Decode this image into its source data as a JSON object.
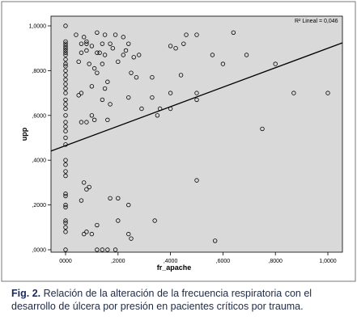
{
  "caption": {
    "label": "Fig. 2.",
    "text": "Relación de la alteración de la frecuencia respiratoria con el desarrollo de úlcera por presión en pacientes críticos por trauma."
  },
  "chart_data": {
    "type": "scatter",
    "title": "",
    "xlabel": "fr_apache",
    "ylabel": "upp",
    "xlim": [
      0,
      1
    ],
    "ylim": [
      0,
      1
    ],
    "x_ticks": [
      "0000",
      ",2000",
      ",4000",
      ",6000",
      ",8000",
      "1,0000"
    ],
    "y_ticks": [
      ",0000",
      ",2000",
      ",4000",
      ",6000",
      ",8000",
      "1,0000"
    ],
    "grid": false,
    "background_color": "#d9d9d9",
    "point_color": "#000000",
    "line_color": "#000000",
    "fit_line": {
      "label": "R² Lineal = 0,046",
      "intercept": 0.465,
      "slope": 0.435
    },
    "points": [
      [
        0,
        1.0
      ],
      [
        0,
        0.93
      ],
      [
        0,
        0.92
      ],
      [
        0,
        0.91
      ],
      [
        0,
        0.9
      ],
      [
        0,
        0.89
      ],
      [
        0,
        0.88
      ],
      [
        0,
        0.87
      ],
      [
        0,
        0.85
      ],
      [
        0,
        0.83
      ],
      [
        0,
        0.82
      ],
      [
        0,
        0.8
      ],
      [
        0,
        0.78
      ],
      [
        0,
        0.76
      ],
      [
        0,
        0.74
      ],
      [
        0,
        0.72
      ],
      [
        0,
        0.7
      ],
      [
        0,
        0.67
      ],
      [
        0,
        0.65
      ],
      [
        0,
        0.63
      ],
      [
        0,
        0.6
      ],
      [
        0,
        0.57
      ],
      [
        0,
        0.55
      ],
      [
        0,
        0.53
      ],
      [
        0,
        0.5
      ],
      [
        0,
        0.47
      ],
      [
        0,
        0.4
      ],
      [
        0,
        0.38
      ],
      [
        0,
        0.35
      ],
      [
        0,
        0.33
      ],
      [
        0,
        0.25
      ],
      [
        0,
        0.24
      ],
      [
        0,
        0.2
      ],
      [
        0,
        0.19
      ],
      [
        0,
        0.13
      ],
      [
        0,
        0.12
      ],
      [
        0,
        0.1
      ],
      [
        0,
        0.08
      ],
      [
        0,
        0.0
      ],
      [
        0.04,
        0.96
      ],
      [
        0.06,
        0.92
      ],
      [
        0.07,
        0.95
      ],
      [
        0.06,
        0.88
      ],
      [
        0.08,
        0.93
      ],
      [
        0.08,
        0.92
      ],
      [
        0.1,
        0.91
      ],
      [
        0.08,
        0.89
      ],
      [
        0.12,
        0.88
      ],
      [
        0.13,
        0.88
      ],
      [
        0.14,
        0.92
      ],
      [
        0.12,
        0.97
      ],
      [
        0.15,
        0.96
      ],
      [
        0.15,
        0.87
      ],
      [
        0.14,
        0.83
      ],
      [
        0.17,
        0.92
      ],
      [
        0.18,
        0.9
      ],
      [
        0.2,
        0.84
      ],
      [
        0.19,
        0.96
      ],
      [
        0.22,
        0.95
      ],
      [
        0.23,
        0.89
      ],
      [
        0.24,
        0.92
      ],
      [
        0.22,
        0.87
      ],
      [
        0.25,
        0.79
      ],
      [
        0.26,
        0.86
      ],
      [
        0.28,
        0.87
      ],
      [
        0.27,
        0.77
      ],
      [
        0.24,
        0.68
      ],
      [
        0.09,
        0.83
      ],
      [
        0.05,
        0.84
      ],
      [
        0.11,
        0.81
      ],
      [
        0.12,
        0.79
      ],
      [
        0.15,
        0.72
      ],
      [
        0.16,
        0.75
      ],
      [
        0.16,
        0.58
      ],
      [
        0.11,
        0.58
      ],
      [
        0.14,
        0.67
      ],
      [
        0.17,
        0.65
      ],
      [
        0.06,
        0.7
      ],
      [
        0.05,
        0.69
      ],
      [
        0.06,
        0.57
      ],
      [
        0.08,
        0.57
      ],
      [
        0.1,
        0.6
      ],
      [
        0.1,
        0.73
      ],
      [
        0.29,
        0.63
      ],
      [
        0.33,
        0.68
      ],
      [
        0.33,
        0.77
      ],
      [
        0.35,
        0.6
      ],
      [
        0.36,
        0.63
      ],
      [
        0.4,
        0.91
      ],
      [
        0.42,
        0.9
      ],
      [
        0.44,
        0.78
      ],
      [
        0.45,
        0.92
      ],
      [
        0.46,
        0.96
      ],
      [
        0.5,
        0.96
      ],
      [
        0.4,
        0.7
      ],
      [
        0.4,
        0.63
      ],
      [
        0.5,
        0.7
      ],
      [
        0.5,
        0.67
      ],
      [
        0.56,
        0.87
      ],
      [
        0.6,
        0.83
      ],
      [
        0.64,
        0.97
      ],
      [
        0.69,
        0.87
      ],
      [
        0.75,
        0.54
      ],
      [
        0.8,
        0.83
      ],
      [
        0.87,
        0.7
      ],
      [
        1.0,
        0.7
      ],
      [
        0.07,
        0.3
      ],
      [
        0.08,
        0.27
      ],
      [
        0.06,
        0.22
      ],
      [
        0.09,
        0.28
      ],
      [
        0.08,
        0.08
      ],
      [
        0.1,
        0.07
      ],
      [
        0.07,
        0.07
      ],
      [
        0.12,
        0.11
      ],
      [
        0.12,
        0.0
      ],
      [
        0.14,
        0.0
      ],
      [
        0.16,
        0.0
      ],
      [
        0.17,
        0.23
      ],
      [
        0.2,
        0.23
      ],
      [
        0.2,
        0.13
      ],
      [
        0.19,
        0.0
      ],
      [
        0.24,
        0.2
      ],
      [
        0.25,
        0.05
      ],
      [
        0.24,
        0.07
      ],
      [
        0.34,
        0.13
      ],
      [
        0.5,
        0.31
      ],
      [
        0.57,
        0.04
      ]
    ]
  }
}
